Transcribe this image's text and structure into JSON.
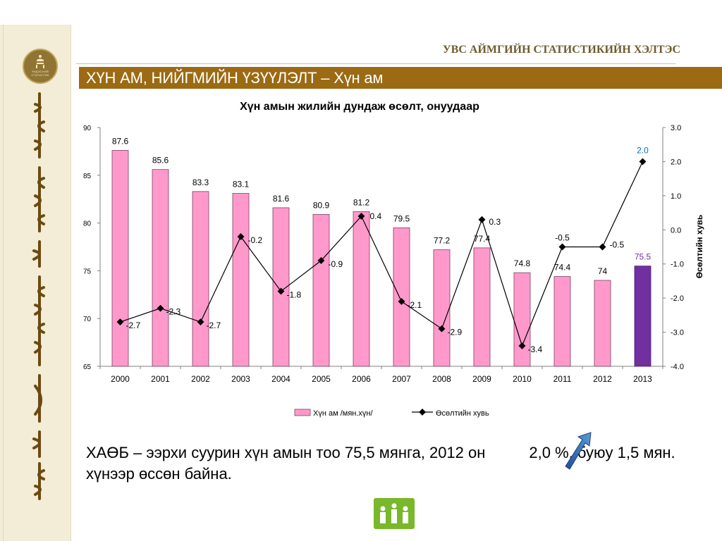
{
  "header": {
    "org_title": "УВС АЙМГИЙН СТАТИСТИКИЙН ХЭЛТЭС",
    "banner_title": "ХҮН АМ, НИЙГМИЙН ҮЗҮҮЛЭЛТ – Хүн ам",
    "emblem_text": "ҮНДЭСНИЙ СТАТИСТИК"
  },
  "colors": {
    "bar": "#ff99cc",
    "bar_highlight": "#7030a0",
    "banner": "#9b6a12",
    "line": "#000000",
    "highlight_label_2013_bar": "#7030a0",
    "highlight_label_2013_line": "#0070c0"
  },
  "chart_data": {
    "type": "bar",
    "title": "Хүн амын жилийн дундаж өсөлт, онуудаар",
    "categories": [
      "2000",
      "2001",
      "2002",
      "2003",
      "2004",
      "2005",
      "2006",
      "2007",
      "2008",
      "2009",
      "2010",
      "2011",
      "2012",
      "2013"
    ],
    "series": [
      {
        "name": "Хүн ам /мян.хүн/",
        "type": "bar",
        "axis": "left",
        "values": [
          87.6,
          85.6,
          83.3,
          83.1,
          81.6,
          80.9,
          81.2,
          79.5,
          77.2,
          77.4,
          74.8,
          74.4,
          74,
          75.5
        ],
        "labels": [
          "87.6",
          "85.6",
          "83.3",
          "83.1",
          "81.6",
          "80.9",
          "81.2",
          "79.5",
          "77.2",
          "77.4",
          "74.8",
          "74.4",
          "74",
          "75.5"
        ]
      },
      {
        "name": "Өсөлтийн хувь",
        "type": "line",
        "axis": "right",
        "values": [
          -2.7,
          -2.3,
          -2.7,
          -0.2,
          -1.8,
          -0.9,
          0.4,
          -2.1,
          -2.9,
          0.3,
          -3.4,
          -0.5,
          -0.5,
          2.0
        ],
        "labels": [
          "-2.7",
          "-2.3",
          "-2.7",
          "-0.2",
          "-1.8",
          "-0.9",
          "0.4",
          "-2.1",
          "-2.9",
          "0.3",
          "-3.4",
          "-0.5",
          "-0.5",
          "2.0"
        ]
      }
    ],
    "ylim_left": [
      65,
      90
    ],
    "yticks_left": [
      "65",
      "70",
      "75",
      "80",
      "85",
      "90"
    ],
    "ylim_right": [
      -4.0,
      3.0
    ],
    "yticks_right": [
      "-4.0",
      "-3.0",
      "-2.0",
      "-1.0",
      "0.0",
      "1.0",
      "2.0",
      "3.0"
    ],
    "ylabel_right": "Өсөлтийн хувь",
    "legend_position": "bottom"
  },
  "caption": {
    "text_before": "ХАӨБ – ээрхи  суурин хүн амын тоо 75,5 мянга, 2012 он",
    "text_after": "2,0 %, буюу 1,5 мян. хүнээр өссөн байна."
  }
}
